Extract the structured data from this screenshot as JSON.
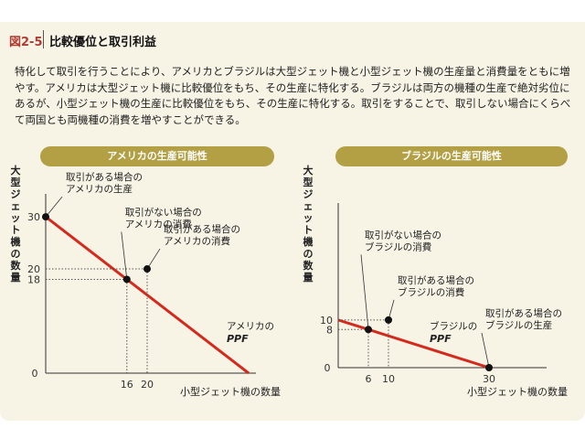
{
  "figure": {
    "number": "図2-5",
    "title": "比較優位と取引利益",
    "description": "特化して取引を行うことにより、アメリカとブラジルは大型ジェット機と小型ジェット機の生産量と消費量をともに増やす。アメリカは大型ジェット機に比較優位をもち、その生産に特化する。ブラジルは両方の機種の生産で絶対劣位にあるが、小型ジェット機の生産に比較優位をもち、その生産に特化する。取引をすることで、取引しない場合にくらべて両国とも両機種の消費を増やすことができる。"
  },
  "chart_data": [
    {
      "type": "line",
      "title": "アメリカの生産可能性",
      "xlabel": "小型ジェット機の数量",
      "ylabel": "大型ジェット機の数量",
      "xlim": [
        0,
        40
      ],
      "ylim": [
        0,
        33
      ],
      "x_ticks": [
        "16",
        "20"
      ],
      "y_ticks": [
        "30",
        "20",
        "18"
      ],
      "origin_label": "0",
      "series": [
        {
          "name": "アメリカのPPF",
          "x": [
            0,
            40
          ],
          "y": [
            30,
            0
          ]
        }
      ],
      "series_label": {
        "line1": "アメリカの",
        "line2": "PPF"
      },
      "points": [
        {
          "x": 0,
          "y": 30,
          "label": [
            "取引がある場合の",
            "アメリカの生産"
          ]
        },
        {
          "x": 16,
          "y": 18,
          "label": [
            "取引がない場合の",
            "アメリカの消費"
          ]
        },
        {
          "x": 20,
          "y": 20,
          "label": [
            "取引がある場合の",
            "アメリカの消費"
          ]
        }
      ]
    },
    {
      "type": "line",
      "title": "ブラジルの生産可能性",
      "xlabel": "小型ジェット機の数量",
      "ylabel": "大型ジェット機の数量",
      "xlim": [
        0,
        40
      ],
      "ylim": [
        0,
        33
      ],
      "x_ticks": [
        "6",
        "10",
        "30"
      ],
      "y_ticks": [
        "10",
        "8"
      ],
      "origin_label": "0",
      "series": [
        {
          "name": "ブラジルのPPF",
          "x": [
            0,
            30
          ],
          "y": [
            10,
            0
          ]
        }
      ],
      "series_label": {
        "line1": "ブラジルの",
        "line2": "PPF"
      },
      "points": [
        {
          "x": 6,
          "y": 8,
          "label": [
            "取引がない場合の",
            "ブラジルの消費"
          ]
        },
        {
          "x": 10,
          "y": 10,
          "label": [
            "取引がある場合の",
            "ブラジルの消費"
          ]
        },
        {
          "x": 30,
          "y": 0,
          "label": [
            "取引がある場合の",
            "ブラジルの生産"
          ]
        }
      ]
    }
  ],
  "colors": {
    "ppf": "#d42a1e",
    "pill": "#b3a045",
    "fig_number": "#b23a30"
  }
}
